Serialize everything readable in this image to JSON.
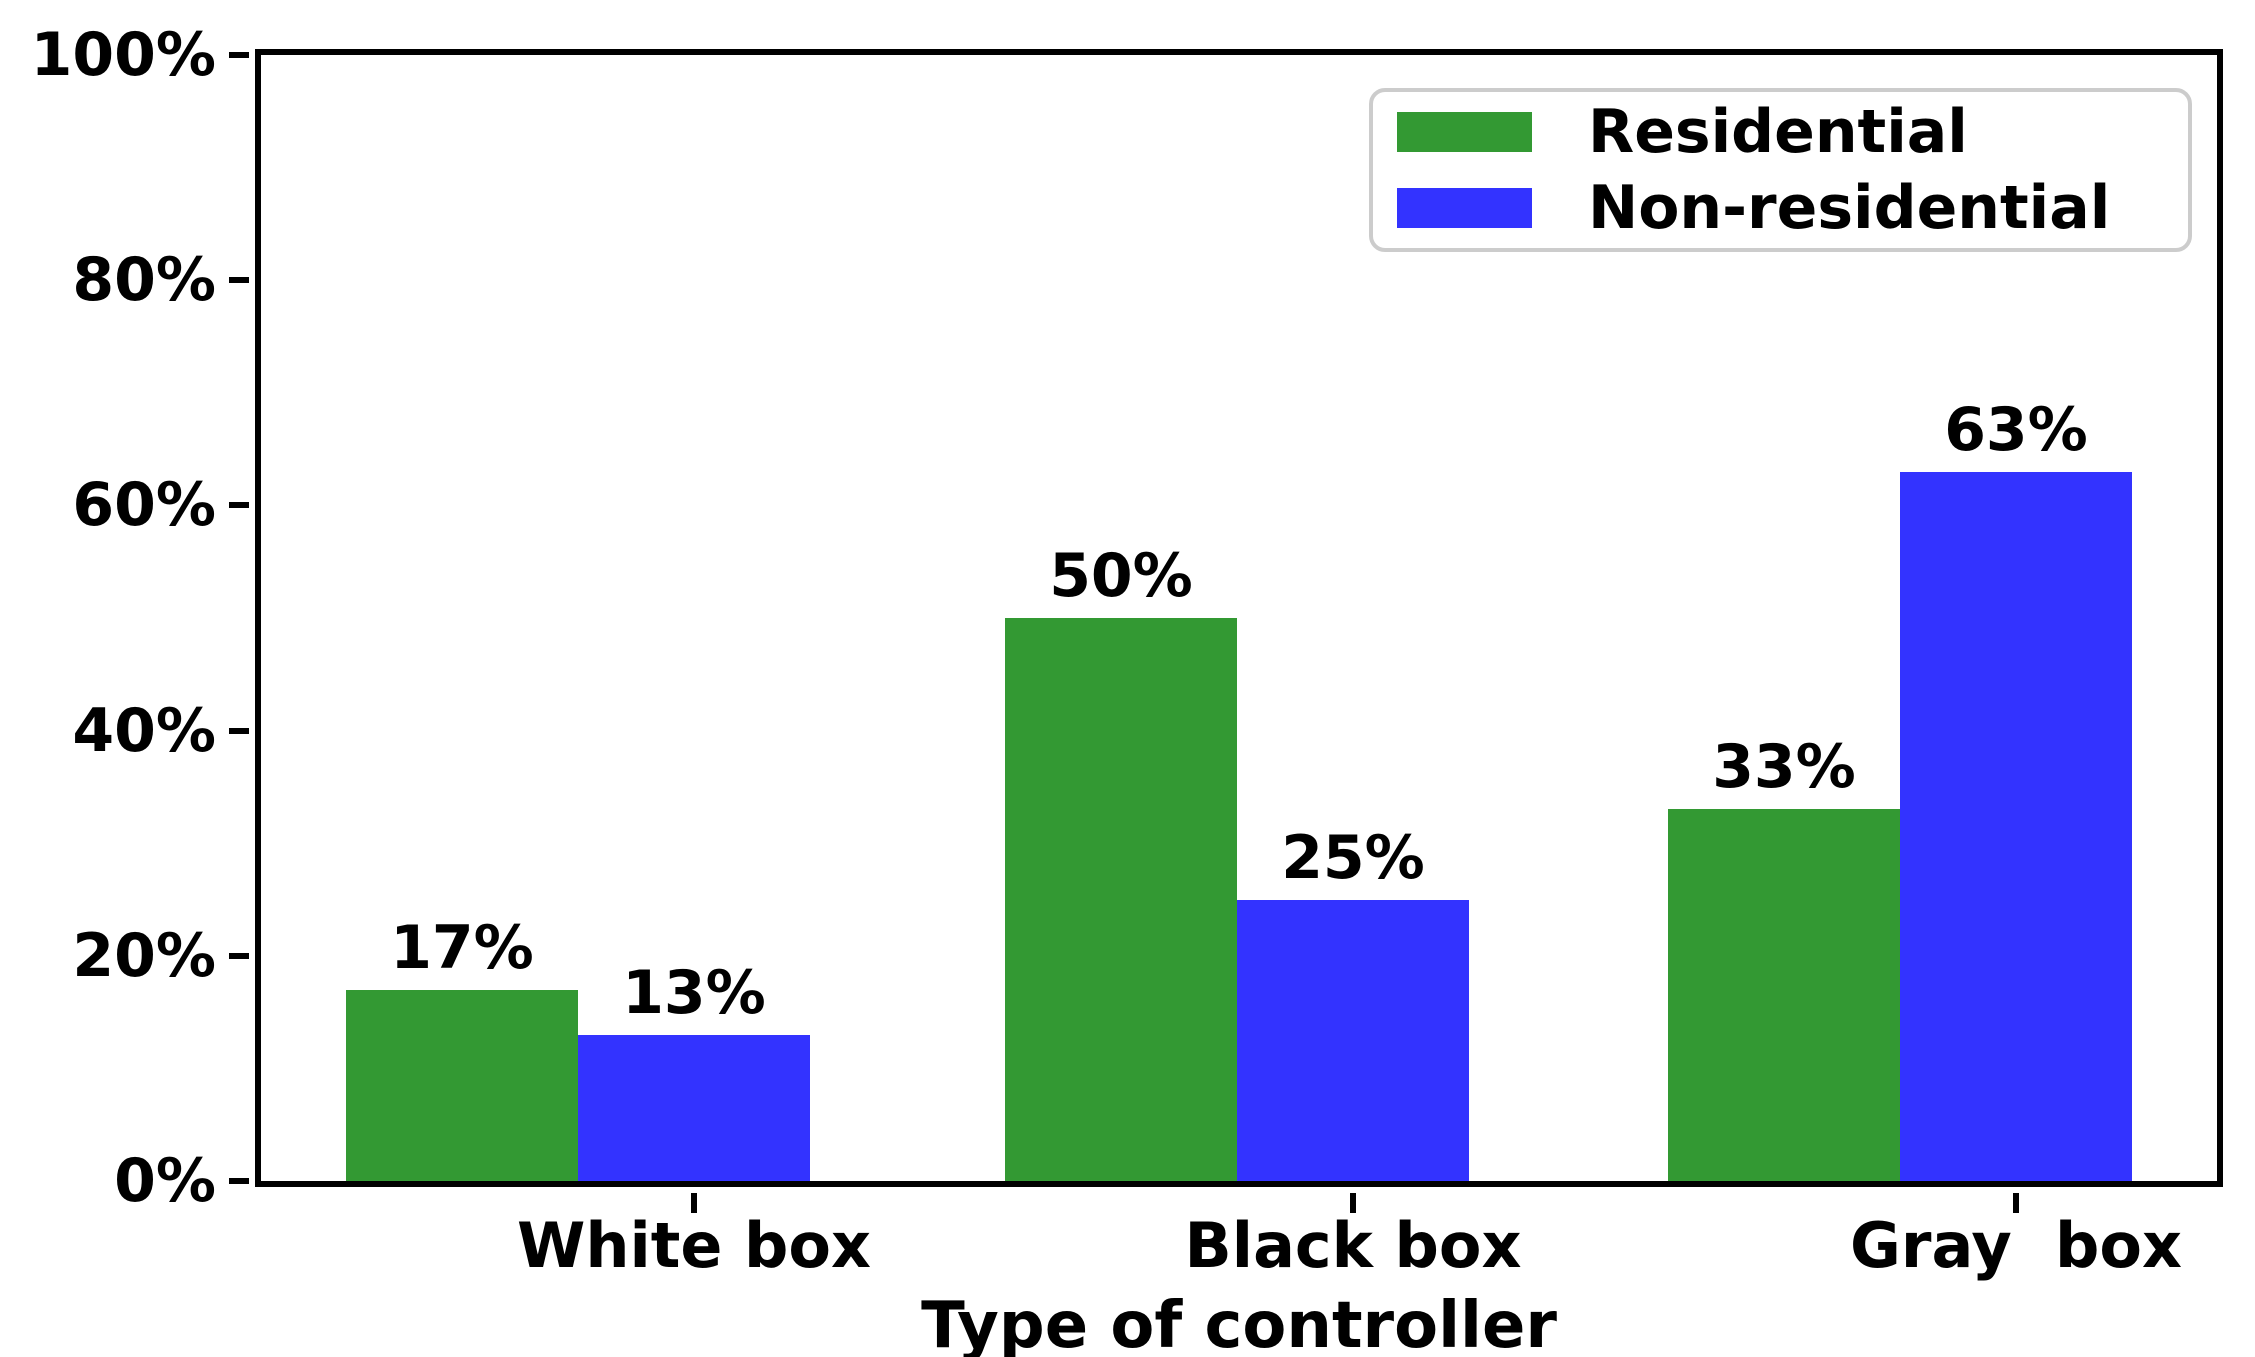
{
  "chart_data": {
    "type": "bar",
    "title": "",
    "xlabel": "Type of controller",
    "ylabel": "",
    "categories": [
      "White box",
      "Black box",
      "Gray  box"
    ],
    "series": [
      {
        "name": "Residential",
        "color": "#339933",
        "values": [
          17,
          50,
          33
        ]
      },
      {
        "name": "Non-residential",
        "color": "#3333ff",
        "values": [
          13,
          25,
          63
        ]
      }
    ],
    "value_label_suffix": "%",
    "bar_value_labels": [
      [
        "17%",
        "50%",
        "33%"
      ],
      [
        "13%",
        "25%",
        "63%"
      ]
    ],
    "yticks": [
      {
        "value": 0,
        "label": "0%"
      },
      {
        "value": 20,
        "label": "20%"
      },
      {
        "value": 40,
        "label": "40%"
      },
      {
        "value": 60,
        "label": "60%"
      },
      {
        "value": 80,
        "label": "80%"
      },
      {
        "value": 100,
        "label": "100%"
      }
    ],
    "ylim": [
      0,
      100
    ],
    "grid": false,
    "legend_position": "upper right",
    "colors": {
      "residential": "#339933",
      "non_residential": "#3333ff",
      "spine": "#000000",
      "legend_border": "#cccccc",
      "background": "#ffffff"
    }
  }
}
